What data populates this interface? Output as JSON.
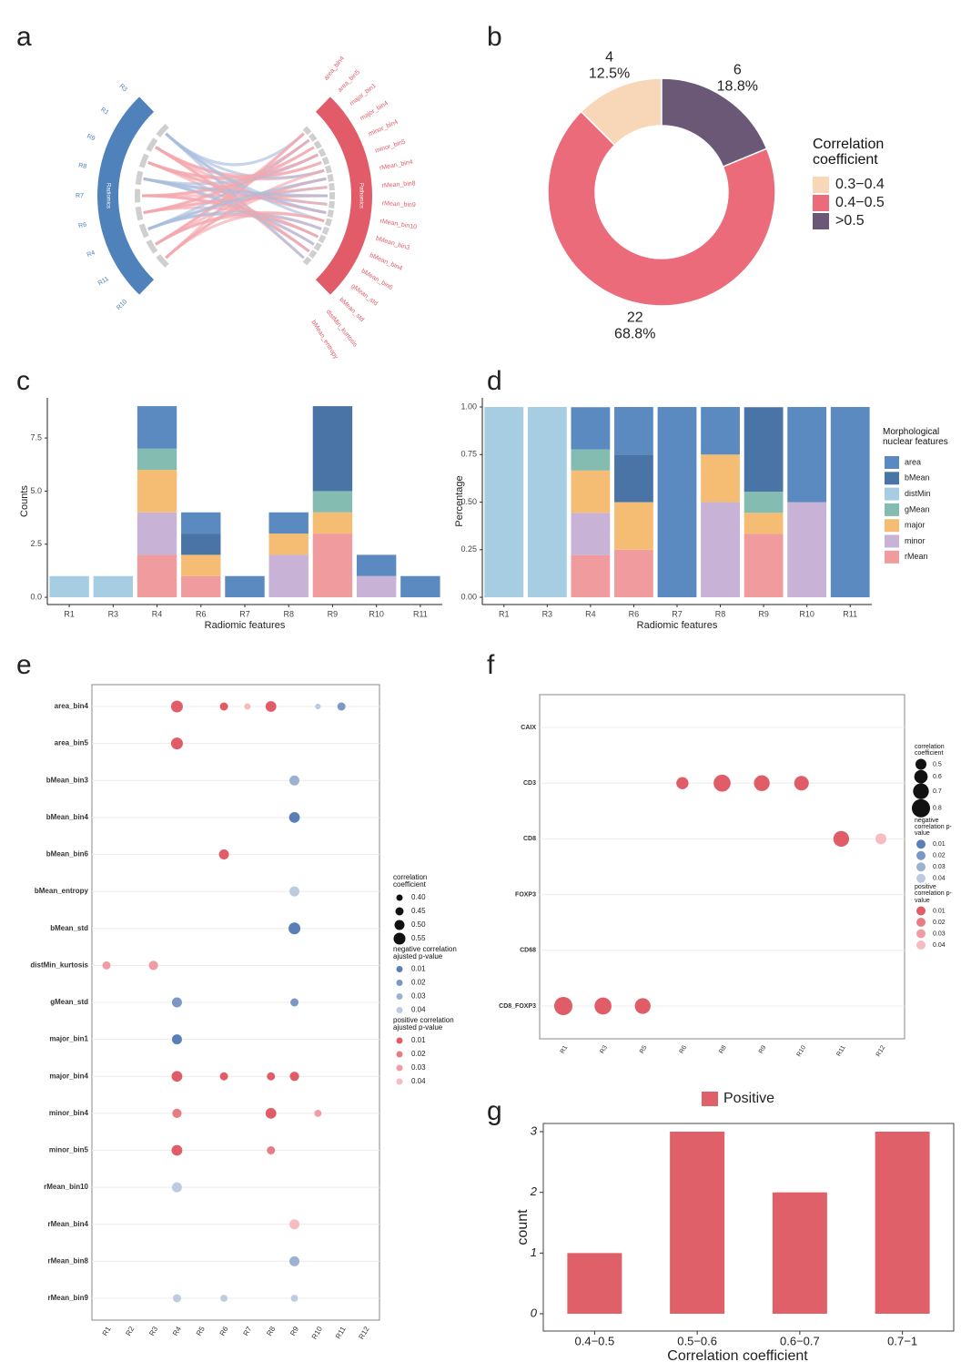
{
  "chart_data": [
    {
      "panel": "a",
      "type": "chord",
      "left_label": "Radiomics",
      "right_label": "Pathomics",
      "left_features": [
        "R3",
        "R1",
        "R9",
        "R8",
        "R7",
        "R6",
        "R4",
        "R11",
        "R10"
      ],
      "right_features": [
        "area_bin4",
        "area_bin5",
        "major_bin1",
        "major_bin4",
        "minor_bin4",
        "minor_bin5",
        "rMean_bin4",
        "rMean_bin8",
        "rMean_bin9",
        "rMean_bin10",
        "bMean_bin3",
        "bMean_bin4",
        "bMean_bin6",
        "gMean_std",
        "bMean_std",
        "distMin_kurtosis",
        "bMean_entropy"
      ],
      "left_color": "#4f82bb",
      "right_color": "#e15c68"
    },
    {
      "panel": "b",
      "type": "donut",
      "legend_title": "Correlation coefficient",
      "categories": [
        "0.3−0.4",
        "0.4−0.5",
        ">0.5"
      ],
      "values": [
        4,
        22,
        6
      ],
      "percent_labels": [
        "12.5%",
        "68.8%",
        "18.8%"
      ],
      "colors": [
        "#f8d6b8",
        "#eb6b7b",
        "#6a5876"
      ]
    },
    {
      "panel": "c",
      "type": "stacked_bar",
      "x_label": "Radiomic features",
      "y_label": "Counts",
      "categories": [
        "R1",
        "R3",
        "R4",
        "R6",
        "R7",
        "R8",
        "R9",
        "R10",
        "R11"
      ],
      "series": [
        {
          "color": "#5a8ac0",
          "values": [
            0,
            0,
            2,
            1,
            1,
            1,
            0,
            1,
            1
          ]
        },
        {
          "color": "#4a74a6",
          "values": [
            0,
            0,
            0,
            1,
            0,
            0,
            4,
            0,
            0
          ]
        },
        {
          "color": "#a6cde2",
          "values": [
            1,
            1,
            0,
            0,
            0,
            0,
            0,
            0,
            0
          ]
        },
        {
          "color": "#85bcb1",
          "values": [
            0,
            0,
            1,
            0,
            0,
            0,
            1,
            0,
            0
          ]
        },
        {
          "color": "#f5bd74",
          "values": [
            0,
            0,
            2,
            1,
            0,
            1,
            1,
            0,
            0
          ]
        },
        {
          "color": "#c8b2d6",
          "values": [
            0,
            0,
            2,
            0,
            0,
            2,
            0,
            1,
            0
          ]
        },
        {
          "color": "#f09b9d",
          "values": [
            0,
            0,
            2,
            1,
            0,
            0,
            3,
            0,
            0
          ]
        }
      ],
      "ylim": [
        -0.34,
        9.39
      ],
      "yticks": [
        {
          "value": 0,
          "label": "0.0"
        },
        {
          "value": 2.5,
          "label": "2.5"
        },
        {
          "value": 5,
          "label": "5.0"
        },
        {
          "value": 7.5,
          "label": "7.5"
        }
      ]
    },
    {
      "panel": "d",
      "type": "stacked_bar",
      "x_label": "Radiomic features",
      "y_label": "Percentage",
      "legend_title": "Morphological nuclear features",
      "categories": [
        "R1",
        "R3",
        "R4",
        "R6",
        "R7",
        "R8",
        "R9",
        "R10",
        "R11"
      ],
      "series": [
        {
          "name": "area",
          "color": "#5a8ac0",
          "values": [
            0,
            0,
            0.222,
            0.25,
            1,
            0.25,
            0,
            0.5,
            1
          ]
        },
        {
          "name": "bMean",
          "color": "#4a74a6",
          "values": [
            0,
            0,
            0,
            0.25,
            0,
            0,
            0.444,
            0,
            0
          ]
        },
        {
          "name": "distMin",
          "color": "#a6cde2",
          "values": [
            1,
            1,
            0,
            0,
            0,
            0,
            0,
            0,
            0
          ]
        },
        {
          "name": "gMean",
          "color": "#85bcb1",
          "values": [
            0,
            0,
            0.111,
            0,
            0,
            0,
            0.111,
            0,
            0
          ]
        },
        {
          "name": "major",
          "color": "#f5bd74",
          "values": [
            0,
            0,
            0.222,
            0.25,
            0,
            0.25,
            0.111,
            0,
            0
          ]
        },
        {
          "name": "minor",
          "color": "#c8b2d6",
          "values": [
            0,
            0,
            0.222,
            0,
            0,
            0.5,
            0,
            0.5,
            0
          ]
        },
        {
          "name": "rMean",
          "color": "#f09b9d",
          "values": [
            0,
            0,
            0.222,
            0.25,
            0,
            0,
            0.333,
            0,
            0
          ]
        }
      ],
      "ylim": [
        -0.038,
        1.048
      ],
      "yticks": [
        {
          "value": 0,
          "label": "0.00"
        },
        {
          "value": 0.25,
          "label": "0.25"
        },
        {
          "value": 0.5,
          "label": "0.50"
        },
        {
          "value": 0.75,
          "label": "0.75"
        },
        {
          "value": 1,
          "label": "1.00"
        }
      ]
    },
    {
      "panel": "e",
      "type": "dot_matrix",
      "x_categories": [
        "R1",
        "R2",
        "R3",
        "R4",
        "R5",
        "R6",
        "R7",
        "R8",
        "R9",
        "R10",
        "R11",
        "R12"
      ],
      "y_categories": [
        "area_bin4",
        "area_bin5",
        "bMean_bin3",
        "bMean_bin4",
        "bMean_bin6",
        "bMean_entropy",
        "bMean_std",
        "distMin_kurtosis",
        "gMean_std",
        "major_bin1",
        "major_bin4",
        "minor_bin4",
        "minor_bin5",
        "rMean_bin10",
        "rMean_bin4",
        "rMean_bin8",
        "rMean_bin9"
      ],
      "size_title": "correlation coefficient",
      "size_ticks": [
        {
          "value": 0.4,
          "label": "0.40"
        },
        0.45,
        {
          "value": 0.5,
          "label": "0.50"
        },
        0.55
      ],
      "p_ticks": [
        0.01,
        0.02,
        0.03,
        0.04
      ],
      "series": [
        {
          "name": "negative correlation ajusted p-value",
          "color": "#5a7fb6",
          "light_color": "#bccbe2",
          "points": [
            {
              "x": "R10",
              "y": "area_bin4",
              "r": 0.38,
              "p": 0.04
            },
            {
              "x": "R11",
              "y": "area_bin4",
              "r": 0.45,
              "p": 0.02
            },
            {
              "x": "R9",
              "y": "bMean_bin3",
              "r": 0.5,
              "p": 0.03
            },
            {
              "x": "R9",
              "y": "bMean_bin4",
              "r": 0.52,
              "p": 0.01
            },
            {
              "x": "R9",
              "y": "bMean_entropy",
              "r": 0.5,
              "p": 0.04
            },
            {
              "x": "R9",
              "y": "bMean_std",
              "r": 0.55,
              "p": 0.01
            },
            {
              "x": "R4",
              "y": "gMean_std",
              "r": 0.5,
              "p": 0.02
            },
            {
              "x": "R9",
              "y": "gMean_std",
              "r": 0.45,
              "p": 0.02
            },
            {
              "x": "R4",
              "y": "major_bin1",
              "r": 0.5,
              "p": 0.01
            },
            {
              "x": "R4",
              "y": "rMean_bin10",
              "r": 0.5,
              "p": 0.04
            },
            {
              "x": "R9",
              "y": "rMean_bin8",
              "r": 0.5,
              "p": 0.03
            },
            {
              "x": "R4",
              "y": "rMean_bin9",
              "r": 0.45,
              "p": 0.04
            },
            {
              "x": "R6",
              "y": "rMean_bin9",
              "r": 0.42,
              "p": 0.04
            },
            {
              "x": "R9",
              "y": "rMean_bin9",
              "r": 0.42,
              "p": 0.04
            }
          ]
        },
        {
          "name": "positive correlation ajusted p-value",
          "color": "#e05c66",
          "light_color": "#f6bcc0",
          "points": [
            {
              "x": "R4",
              "y": "area_bin4",
              "r": 0.55,
              "p": 0.01
            },
            {
              "x": "R6",
              "y": "area_bin4",
              "r": 0.45,
              "p": 0.01
            },
            {
              "x": "R7",
              "y": "area_bin4",
              "r": 0.4,
              "p": 0.04
            },
            {
              "x": "R8",
              "y": "area_bin4",
              "r": 0.52,
              "p": 0.01
            },
            {
              "x": "R4",
              "y": "area_bin5",
              "r": 0.55,
              "p": 0.01
            },
            {
              "x": "R6",
              "y": "bMean_bin6",
              "r": 0.5,
              "p": 0.01
            },
            {
              "x": "R1",
              "y": "distMin_kurtosis",
              "r": 0.45,
              "p": 0.03
            },
            {
              "x": "R3",
              "y": "distMin_kurtosis",
              "r": 0.48,
              "p": 0.03
            },
            {
              "x": "R4",
              "y": "major_bin4",
              "r": 0.52,
              "p": 0.01
            },
            {
              "x": "R6",
              "y": "major_bin4",
              "r": 0.45,
              "p": 0.01
            },
            {
              "x": "R8",
              "y": "major_bin4",
              "r": 0.45,
              "p": 0.01
            },
            {
              "x": "R9",
              "y": "major_bin4",
              "r": 0.48,
              "p": 0.01
            },
            {
              "x": "R4",
              "y": "minor_bin4",
              "r": 0.48,
              "p": 0.02
            },
            {
              "x": "R8",
              "y": "minor_bin4",
              "r": 0.52,
              "p": 0.01
            },
            {
              "x": "R10",
              "y": "minor_bin4",
              "r": 0.42,
              "p": 0.03
            },
            {
              "x": "R4",
              "y": "minor_bin5",
              "r": 0.52,
              "p": 0.01
            },
            {
              "x": "R8",
              "y": "minor_bin5",
              "r": 0.45,
              "p": 0.02
            },
            {
              "x": "R9",
              "y": "rMean_bin4",
              "r": 0.5,
              "p": 0.04
            }
          ]
        }
      ]
    },
    {
      "panel": "f",
      "type": "dot_matrix",
      "x_categories": [
        "R1",
        "R3",
        "R5",
        "R6",
        "R8",
        "R9",
        "R10",
        "R11",
        "R12"
      ],
      "y_categories": [
        "CAIX",
        "CD3",
        "CD8",
        "FOXP3",
        "CD68",
        "CD8_FOXP3"
      ],
      "size_title": "correlation coefficient",
      "size_ticks": [
        0.5,
        0.6,
        0.7,
        0.8
      ],
      "p_ticks": [
        0.01,
        0.02,
        0.03,
        0.04
      ],
      "series": [
        {
          "name": "negative correlation p-value",
          "color": "#5a7fb6",
          "light_color": "#bccbe2",
          "points": []
        },
        {
          "name": "positive correlation p-value",
          "color": "#e05c66",
          "light_color": "#f6bcc0",
          "points": [
            {
              "x": "R6",
              "y": "CD3",
              "r": 0.55,
              "p": 0.01
            },
            {
              "x": "R8",
              "y": "CD3",
              "r": 0.75,
              "p": 0.01
            },
            {
              "x": "R9",
              "y": "CD3",
              "r": 0.7,
              "p": 0.01
            },
            {
              "x": "R10",
              "y": "CD3",
              "r": 0.65,
              "p": 0.01
            },
            {
              "x": "R11",
              "y": "CD8",
              "r": 0.7,
              "p": 0.01
            },
            {
              "x": "R12",
              "y": "CD8",
              "r": 0.5,
              "p": 0.04
            },
            {
              "x": "R1",
              "y": "CD8_FOXP3",
              "r": 0.8,
              "p": 0.01
            },
            {
              "x": "R3",
              "y": "CD8_FOXP3",
              "r": 0.75,
              "p": 0.01
            },
            {
              "x": "R5",
              "y": "CD8_FOXP3",
              "r": 0.7,
              "p": 0.01
            }
          ]
        }
      ]
    },
    {
      "panel": "g",
      "type": "bar",
      "x_label": "Correlation coefficient",
      "y_label": "count",
      "categories": [
        "0.4−0.5",
        "0.5−0.6",
        "0.6−0.7",
        "0.7−1"
      ],
      "series": [
        {
          "name": "Positive",
          "color": "#e0606a",
          "values": [
            1,
            3,
            2,
            3
          ]
        }
      ],
      "ylim": [
        -0.285,
        3.135
      ],
      "yticks": [
        0,
        1,
        2,
        3
      ]
    }
  ]
}
